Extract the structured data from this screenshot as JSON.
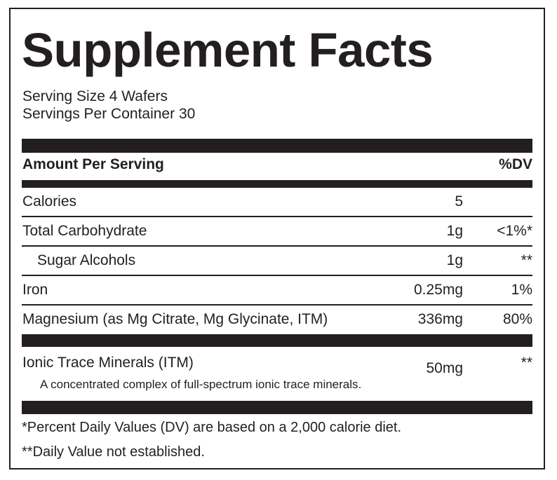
{
  "label": {
    "title": "Supplement Facts",
    "serving_size": "Serving Size 4 Wafers",
    "servings_per_container": "Servings Per Container 30",
    "header": {
      "amount_label": "Amount Per Serving",
      "dv_label": "%DV"
    },
    "rows": [
      {
        "name": "Calories",
        "amount": "5",
        "dv": ""
      },
      {
        "name": "Total Carbohydrate",
        "amount": "1g",
        "dv": "<1%*"
      },
      {
        "name": "Sugar Alcohols",
        "amount": "1g",
        "dv": "**"
      },
      {
        "name": "Iron",
        "amount": "0.25mg",
        "dv": "1%"
      },
      {
        "name": "Magnesium (as Mg Citrate, Mg Glycinate, ITM)",
        "amount": "336mg",
        "dv": "80%"
      },
      {
        "name": "Ionic Trace Minerals (ITM)",
        "amount": "50mg",
        "dv": "**"
      }
    ],
    "itm_description": "A concentrated complex of full-spectrum ionic trace minerals.",
    "footnotes": [
      "*Percent Daily Values (DV) are based on a 2,000 calorie diet.",
      "**Daily Value not established."
    ]
  }
}
